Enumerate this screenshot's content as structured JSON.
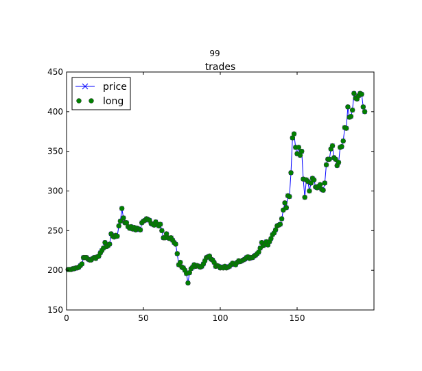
{
  "chart_data": {
    "type": "line",
    "suptitle": "99",
    "title": "trades",
    "xlabel": "",
    "ylabel": "",
    "xlim": [
      0,
      200
    ],
    "ylim": [
      150,
      450
    ],
    "xticks": [
      0,
      50,
      100,
      150
    ],
    "yticks": [
      150,
      200,
      250,
      300,
      350,
      400,
      450
    ],
    "grid": false,
    "legend": {
      "placement": "top-left",
      "entries": [
        "price",
        "long"
      ]
    },
    "x_start": 1,
    "series": [
      {
        "name": "price",
        "style": "line",
        "marker": "x",
        "color": "#0000ff"
      },
      {
        "name": "long",
        "style": "markers",
        "marker": "o",
        "color": "#008000"
      }
    ],
    "values": [
      201,
      201,
      201,
      202,
      202,
      203,
      203,
      204,
      206,
      208,
      216,
      216,
      216,
      214,
      213,
      213,
      215,
      216,
      215,
      217,
      218,
      222,
      225,
      228,
      235,
      230,
      231,
      233,
      246,
      243,
      242,
      244,
      243,
      256,
      262,
      278,
      266,
      260,
      260,
      255,
      253,
      255,
      252,
      254,
      251,
      253,
      252,
      251,
      260,
      262,
      263,
      265,
      264,
      263,
      259,
      258,
      257,
      261,
      258,
      256,
      258,
      250,
      241,
      241,
      246,
      241,
      240,
      241,
      238,
      235,
      233,
      221,
      207,
      210,
      204,
      203,
      200,
      196,
      184,
      197,
      202,
      204,
      207,
      205,
      206,
      205,
      204,
      205,
      208,
      212,
      216,
      217,
      218,
      214,
      213,
      210,
      205,
      206,
      205,
      203,
      204,
      203,
      205,
      203,
      204,
      205,
      207,
      209,
      208,
      207,
      210,
      212,
      211,
      212,
      213,
      214,
      216,
      217,
      215,
      216,
      216,
      218,
      219,
      221,
      223,
      228,
      235,
      231,
      233,
      236,
      232,
      236,
      240,
      245,
      247,
      251,
      256,
      257,
      258,
      265,
      276,
      285,
      279,
      294,
      293,
      323,
      367,
      372,
      355,
      347,
      355,
      345,
      350,
      315,
      292,
      314,
      312,
      300,
      310,
      316,
      314,
      305,
      304,
      306,
      308,
      302,
      301,
      310,
      333,
      340,
      340,
      353,
      357,
      342,
      340,
      332,
      336,
      355,
      356,
      363,
      380,
      379,
      406,
      393,
      394,
      402,
      423,
      417,
      416,
      420,
      423,
      422,
      406,
      400
    ],
    "colors": {
      "line": "#0000ff",
      "marker_fill": "#008000",
      "frame": "#000000"
    }
  }
}
